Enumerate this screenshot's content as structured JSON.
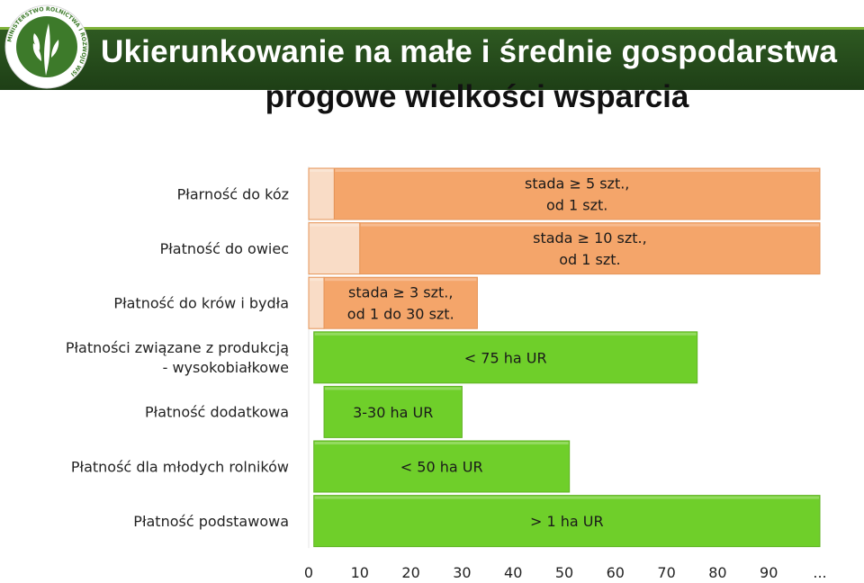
{
  "header": {
    "title_line1": "Ukierunkowanie na małe i średnie gospodarstwa",
    "title_line2": "progowe wielkości wsparcia"
  },
  "logo": {
    "ring_text": "MINISTERSTWO ROLNICTWA I ROZWOJU WSI",
    "icon": "wheat-logo-icon"
  },
  "colors": {
    "orange": "#f4a56a",
    "orange_light": "#f9dcc6",
    "green": "#6fcf2a",
    "green_border": "#5fb223"
  },
  "chart_data": {
    "type": "bar",
    "orientation": "horizontal",
    "categories": [
      "Płarność do kóz",
      "Płatność do owiec",
      "Płatność do krów i bydła",
      "Płatności związane z produkcją - wysokobiałkowe",
      "Płatność dodatkowa",
      "Płatność dla młodych rolników",
      "Płatność podstawowa"
    ],
    "category_lines": [
      [
        "Płarność do kóz"
      ],
      [
        "Płatność do owiec"
      ],
      [
        "Płatność do krów i bydła"
      ],
      [
        "Płatności związane z produkcją",
        "- wysokobiałkowe"
      ],
      [
        "Płatność dodatkowa"
      ],
      [
        "Płatność dla młodych rolników"
      ],
      [
        "Płatność podstawowa"
      ]
    ],
    "bars": [
      {
        "start": 0,
        "end": 5,
        "color": "orange_light",
        "label": []
      },
      {
        "start": 5,
        "end": 100,
        "color": "orange",
        "label": [
          "stada ≥ 5 szt.,",
          "od 1 szt."
        ]
      },
      {
        "start": 0,
        "end": 10,
        "color": "orange_light",
        "label": []
      },
      {
        "start": 10,
        "end": 100,
        "color": "orange",
        "label": [
          "stada ≥ 10 szt.,",
          "od 1 szt."
        ]
      },
      {
        "start": 0,
        "end": 3,
        "color": "orange_light",
        "label": []
      },
      {
        "start": 3,
        "end": 33,
        "color": "orange",
        "label": [
          "stada ≥ 3 szt.,",
          "od 1 do 30 szt."
        ]
      },
      {
        "start": 1,
        "end": 76,
        "color": "green",
        "label": [
          "< 75 ha UR"
        ]
      },
      {
        "start": 3,
        "end": 30,
        "color": "green",
        "label": [
          "3-30 ha UR"
        ]
      },
      {
        "start": 1,
        "end": 51,
        "color": "green",
        "label": [
          "< 50 ha UR"
        ]
      },
      {
        "start": 1,
        "end": 100,
        "color": "green",
        "label": [
          "> 1 ha UR"
        ]
      }
    ],
    "bar_rows": [
      0,
      0,
      1,
      1,
      2,
      2,
      3,
      4,
      5,
      6
    ],
    "x_ticks": [
      "0",
      "10",
      "20",
      "30",
      "40",
      "50",
      "60",
      "70",
      "80",
      "90",
      "..."
    ],
    "x_tick_values": [
      0,
      10,
      20,
      30,
      40,
      50,
      60,
      70,
      80,
      90,
      100
    ],
    "xlim": [
      0,
      100
    ],
    "grid": false
  }
}
